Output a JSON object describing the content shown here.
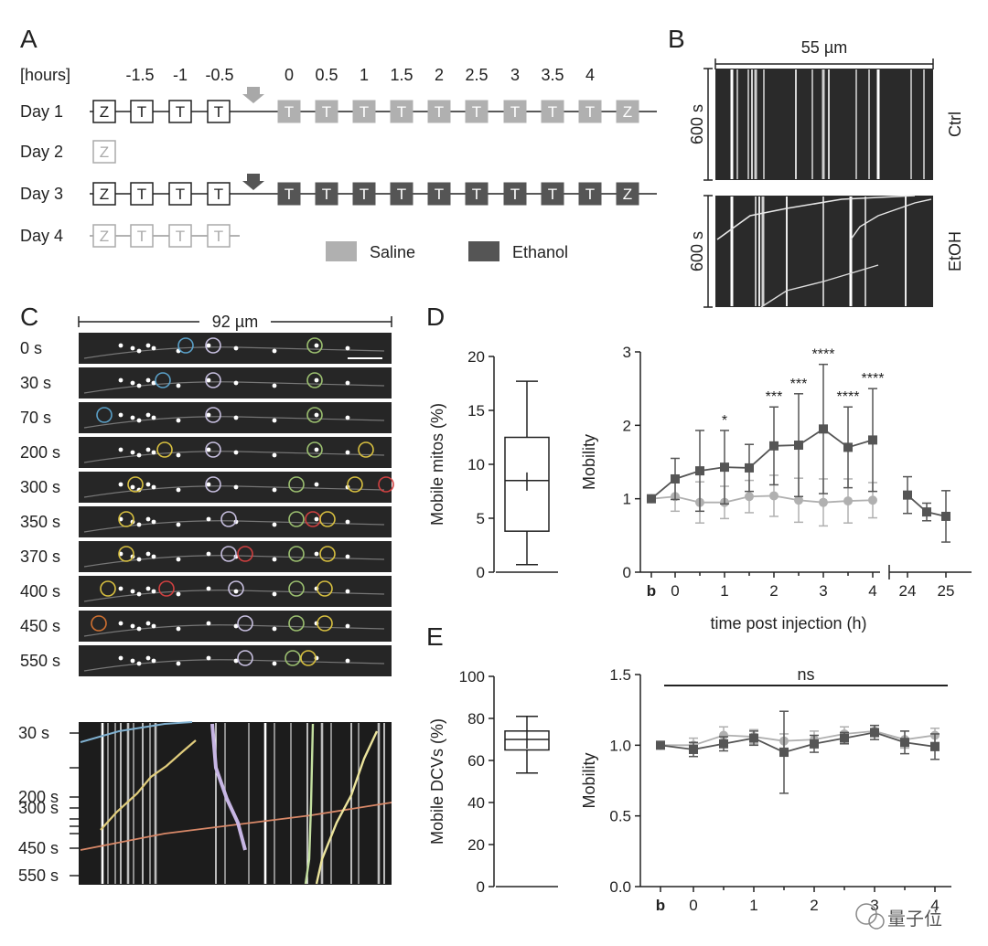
{
  "panel_a": {
    "letter": "A",
    "hours_label": "[hours]",
    "time_labels": [
      "-1.5",
      "-1",
      "-0.5",
      "0",
      "0.5",
      "1",
      "1.5",
      "2",
      "2.5",
      "3",
      "3.5",
      "4"
    ],
    "days": [
      {
        "label": "Day 1",
        "boxes": [
          "Z",
          "T",
          "T",
          "T",
          "T",
          "T",
          "T",
          "T",
          "T",
          "T",
          "T",
          "T",
          "T",
          "Z"
        ],
        "style": "saline"
      },
      {
        "label": "Day 2",
        "boxes": [
          "Z"
        ],
        "style": "faint"
      },
      {
        "label": "Day 3",
        "boxes": [
          "Z",
          "T",
          "T",
          "T",
          "T",
          "T",
          "T",
          "T",
          "T",
          "T",
          "T",
          "T",
          "T",
          "Z"
        ],
        "style": "ethanol"
      },
      {
        "label": "Day 4",
        "boxes": [
          "Z",
          "T",
          "T",
          "T"
        ],
        "style": "faint"
      }
    ],
    "legend": [
      {
        "label": "Saline",
        "color": "#b0b0b0"
      },
      {
        "label": "Ethanol",
        "color": "#555555"
      }
    ]
  },
  "panel_b": {
    "letter": "B",
    "scale_label": "55 µm",
    "kymos": [
      {
        "y_label": "600 s",
        "condition": "Ctrl"
      },
      {
        "y_label": "600 s",
        "condition": "EtOH"
      }
    ]
  },
  "panel_c": {
    "letter": "C",
    "scale_label": "92 µm",
    "frame_labels": [
      "0 s",
      "30 s",
      "70 s",
      "200 s",
      "300 s",
      "350 s",
      "370 s",
      "400 s",
      "450 s",
      "550 s"
    ],
    "kymo_labels": [
      "30 s",
      "200 s",
      "300 s",
      "450 s",
      "550 s"
    ]
  },
  "panel_d": {
    "letter": "D",
    "box_ylabel": "Mobile mitos (%)",
    "mobility_ylabel": "Mobility",
    "xlabel": "time post injection (h)",
    "x_ticks": [
      "b",
      "0",
      "1",
      "2",
      "3",
      "4",
      "24",
      "25"
    ],
    "significance": [
      "*",
      "***",
      "***",
      "****",
      "****",
      "****"
    ]
  },
  "panel_e": {
    "letter": "E",
    "box_ylabel": "Mobile DCVs (%)",
    "mobility_ylabel": "Mobility",
    "ns_label": "ns",
    "x_ticks": [
      "b",
      "0",
      "1",
      "2",
      "3",
      "4"
    ]
  },
  "watermark": "量子位",
  "chart_data": [
    {
      "type": "box",
      "ylabel": "Mobile mitos (%)",
      "ylim": [
        0,
        20
      ],
      "y_ticks": [
        0,
        5,
        10,
        15,
        20
      ],
      "whisker_low": 0.7,
      "q1": 3.8,
      "median": 8.5,
      "q3": 12.5,
      "whisker_high": 17.7,
      "mean": 8.4
    },
    {
      "type": "line",
      "ylabel": "Mobility",
      "xlabel": "time post injection (h)",
      "ylim": [
        0,
        3
      ],
      "y_ticks": [
        0,
        1,
        2,
        3
      ],
      "series": [
        {
          "name": "Saline",
          "color": "#b0b0b0",
          "x": [
            "b",
            0,
            0.5,
            1,
            1.5,
            2,
            2.5,
            3,
            3.5,
            4
          ],
          "values": [
            1.0,
            1.03,
            0.95,
            0.95,
            1.03,
            1.04,
            0.98,
            0.95,
            0.97,
            0.98
          ],
          "err": [
            0.02,
            0.2,
            0.28,
            0.22,
            0.22,
            0.28,
            0.3,
            0.32,
            0.3,
            0.24
          ]
        },
        {
          "name": "Ethanol",
          "color": "#555555",
          "x": [
            "b",
            0,
            0.5,
            1,
            1.5,
            2,
            2.5,
            3,
            3.5,
            4,
            24,
            24.5,
            25
          ],
          "values": [
            1.0,
            1.27,
            1.38,
            1.43,
            1.42,
            1.72,
            1.73,
            1.95,
            1.7,
            1.8,
            1.05,
            0.82,
            0.76
          ],
          "err": [
            0.03,
            0.28,
            0.55,
            0.5,
            0.32,
            0.53,
            0.7,
            0.88,
            0.55,
            0.7,
            0.25,
            0.12,
            0.35
          ]
        }
      ]
    },
    {
      "type": "box",
      "ylabel": "Mobile DCVs (%)",
      "ylim": [
        0,
        100
      ],
      "y_ticks": [
        0,
        20,
        40,
        60,
        80,
        100
      ],
      "whisker_low": 54,
      "q1": 65,
      "median": 70,
      "q3": 74,
      "whisker_high": 81,
      "mean": 70
    },
    {
      "type": "line",
      "ylabel": "Mobility",
      "ylim": [
        0,
        1.5
      ],
      "y_ticks": [
        0.0,
        0.5,
        1.0,
        1.5
      ],
      "series": [
        {
          "name": "Saline",
          "color": "#b0b0b0",
          "x": [
            "b",
            0,
            0.5,
            1,
            1.5,
            2,
            2.5,
            3,
            3.5,
            4
          ],
          "values": [
            1.0,
            1.0,
            1.07,
            1.06,
            1.03,
            1.04,
            1.08,
            1.1,
            1.04,
            1.07
          ],
          "err": [
            0.01,
            0.05,
            0.06,
            0.05,
            0.05,
            0.06,
            0.05,
            0.04,
            0.06,
            0.05
          ]
        },
        {
          "name": "Ethanol",
          "color": "#555555",
          "x": [
            "b",
            0,
            0.5,
            1,
            1.5,
            2,
            2.5,
            3,
            3.5,
            4
          ],
          "values": [
            1.0,
            0.97,
            1.01,
            1.05,
            0.95,
            1.01,
            1.05,
            1.09,
            1.02,
            0.99
          ],
          "err": [
            0.01,
            0.05,
            0.05,
            0.05,
            0.29,
            0.06,
            0.04,
            0.05,
            0.08,
            0.09
          ]
        }
      ]
    }
  ]
}
